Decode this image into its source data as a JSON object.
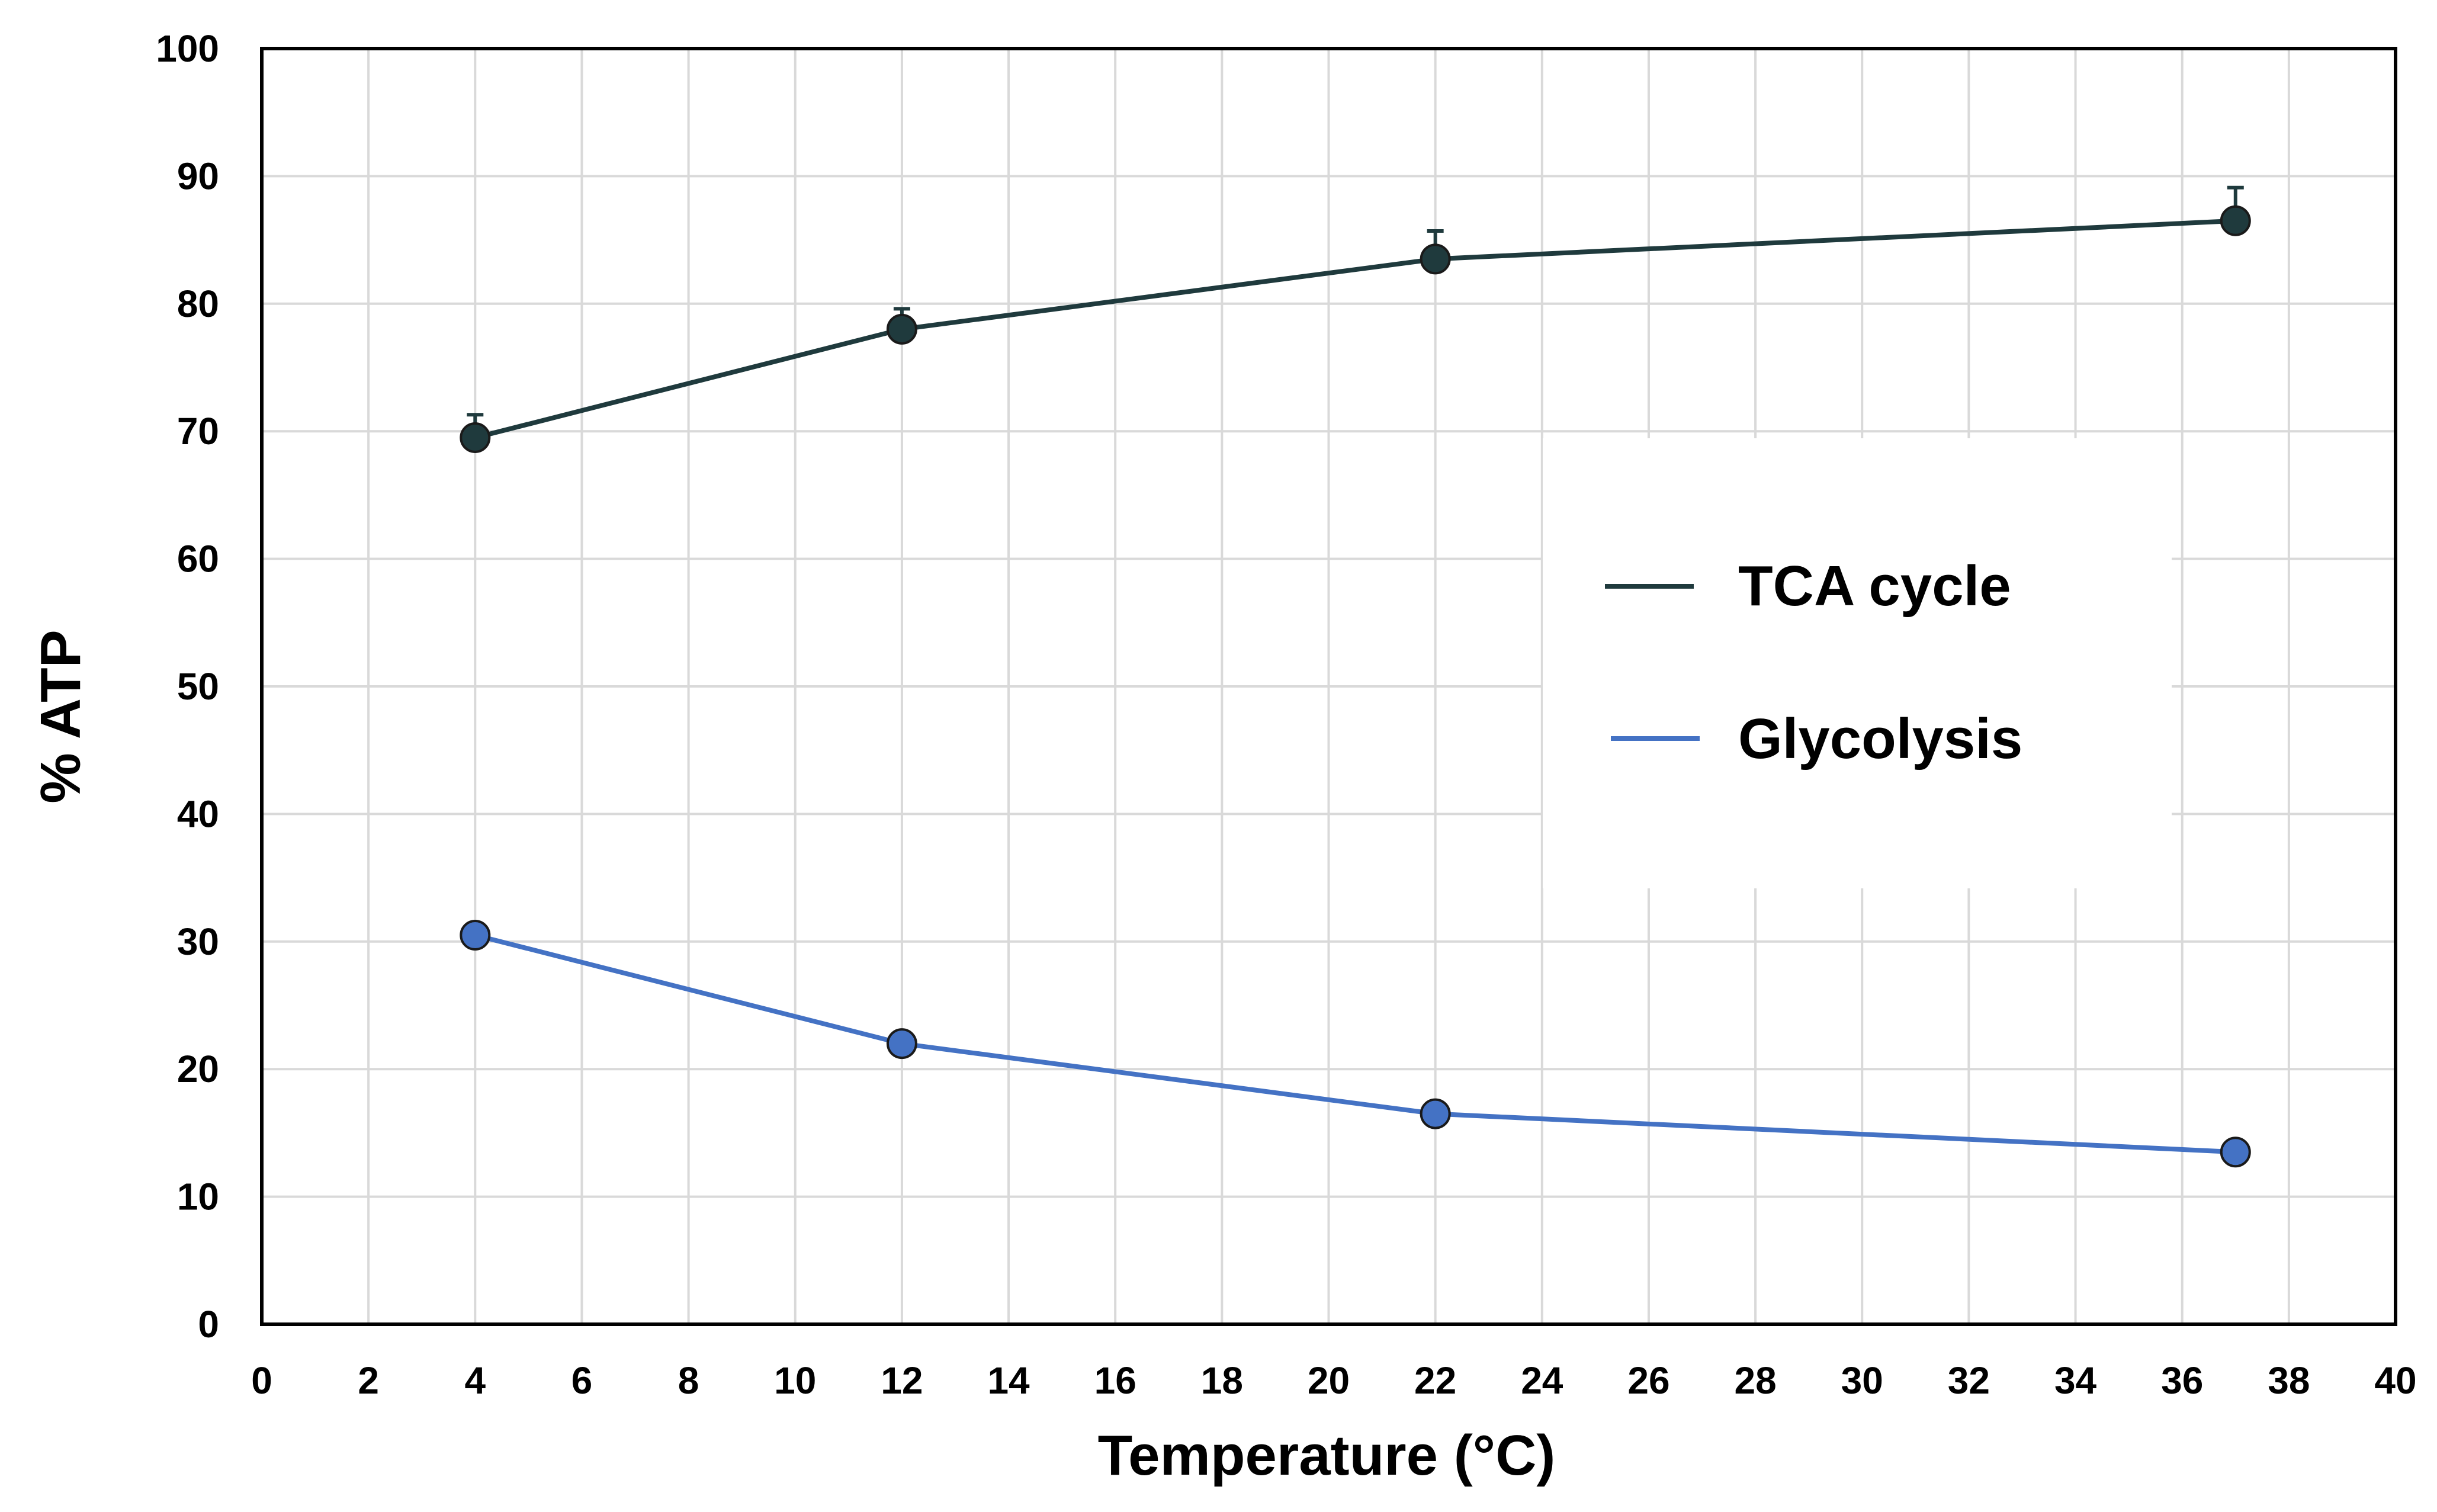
{
  "chart_data": {
    "type": "line",
    "title": "",
    "xlabel": "Temperature (°C)",
    "ylabel": "% ATP",
    "xlim": [
      0,
      40
    ],
    "ylim": [
      0,
      100
    ],
    "x_ticks": [
      0,
      2,
      4,
      6,
      8,
      10,
      12,
      14,
      16,
      18,
      20,
      22,
      24,
      26,
      28,
      30,
      32,
      34,
      36,
      38,
      40
    ],
    "y_ticks": [
      0,
      10,
      20,
      30,
      40,
      50,
      60,
      70,
      80,
      90,
      100
    ],
    "grid": true,
    "legend_position": "right-middle",
    "series": [
      {
        "name": "TCA cycle",
        "color": "#1f3a3d",
        "x": [
          4,
          12,
          22,
          37
        ],
        "y": [
          69.5,
          78,
          83.5,
          86.5
        ],
        "error_upper": [
          1.8,
          1.6,
          2.2,
          2.6
        ]
      },
      {
        "name": "Glycolysis",
        "color": "#4472c4",
        "x": [
          4,
          12,
          22,
          37
        ],
        "y": [
          30.5,
          22,
          16.5,
          13.5
        ],
        "error_upper": [
          0,
          0,
          0,
          0
        ]
      }
    ]
  }
}
